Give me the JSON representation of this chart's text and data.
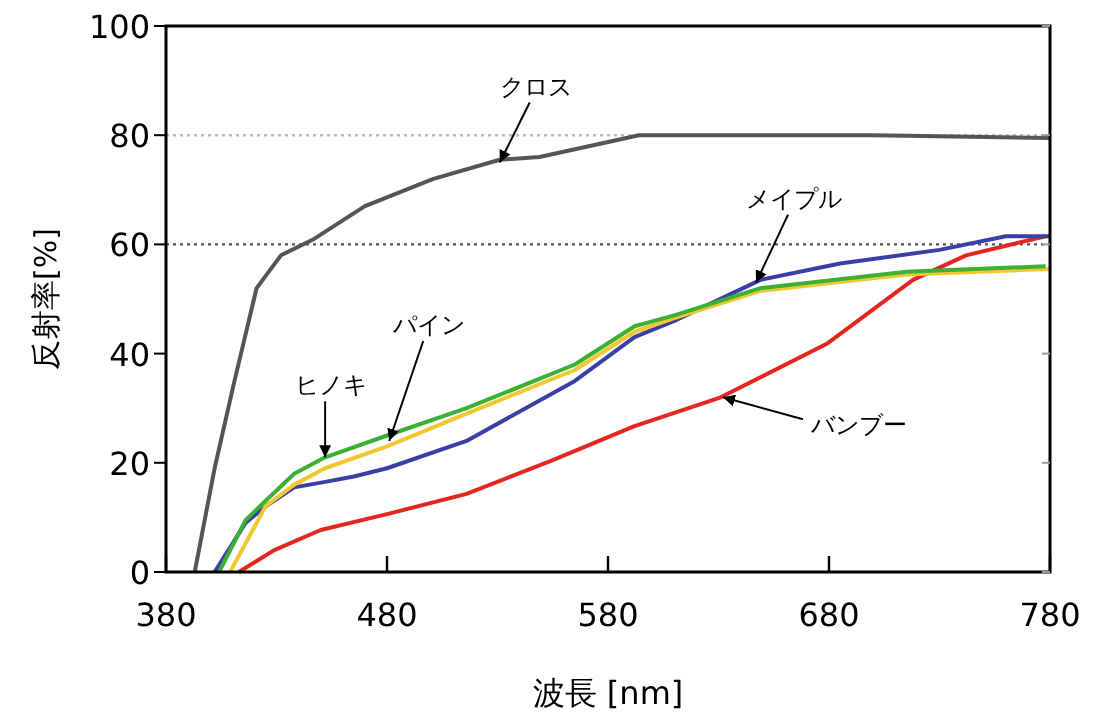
{
  "chart_data": {
    "type": "line",
    "xlabel": "波長 [nm]",
    "ylabel": "反射率[%]",
    "xlim": [
      380,
      780
    ],
    "ylim": [
      0,
      100
    ],
    "xticks": [
      380,
      480,
      580,
      680,
      780
    ],
    "yticks": [
      0,
      20,
      40,
      60,
      80,
      100
    ],
    "ref_lines": [
      {
        "axis": "y",
        "value": 80,
        "color": "#bbbbbb",
        "line_style": "dotted"
      },
      {
        "axis": "y",
        "value": 60,
        "color": "#555555",
        "line_style": "dotted"
      }
    ],
    "series": [
      {
        "color": "#e52620",
        "x": [
          413,
          429,
          450,
          480,
          516,
          555,
          592,
          631,
          679,
          718,
          742,
          778
        ],
        "values": [
          0,
          4,
          7.7,
          10.6,
          14.3,
          20.5,
          26.7,
          32,
          41.8,
          53.5,
          58,
          61.5
        ]
      },
      {
        "color": "#3a3fa6",
        "x": [
          402,
          416,
          425,
          438,
          452,
          465,
          480,
          516,
          565,
          592,
          610,
          649,
          685,
          730,
          760,
          780
        ],
        "values": [
          0,
          9,
          12,
          15.5,
          16.5,
          17.5,
          19,
          24,
          35,
          43,
          46,
          53.5,
          56.5,
          59,
          61.5,
          61.5
        ]
      },
      {
        "color": "#f2c731",
        "x": [
          409,
          425,
          438,
          452,
          480,
          516,
          565,
          592,
          610,
          649,
          715,
          780
        ],
        "values": [
          0,
          12,
          16,
          19,
          23,
          29,
          37,
          44,
          46.5,
          51.5,
          54.5,
          55.5
        ]
      },
      {
        "color": "#3cb034",
        "x": [
          404,
          416,
          425,
          438,
          452,
          480,
          516,
          565,
          592,
          610,
          649,
          715,
          778
        ],
        "values": [
          0,
          9.5,
          13,
          18,
          21,
          25,
          30,
          38,
          45,
          47,
          52,
          55,
          56
        ]
      },
      {
        "color": "#555555",
        "x": [
          393,
          402,
          411,
          421,
          432,
          447,
          470,
          501,
          531,
          549,
          594,
          640,
          700,
          780
        ],
        "values": [
          0,
          19,
          35,
          52,
          58,
          61,
          67,
          72,
          75.5,
          76,
          80,
          80,
          80,
          79.5
        ]
      }
    ],
    "annotations": [
      {
        "text": "クロス",
        "x": 531,
        "y": 75
      },
      {
        "text": "ヒノキ",
        "x": 452,
        "y": 21
      },
      {
        "text": "パイン",
        "x": 481,
        "y": 24
      },
      {
        "text": "メイプル",
        "x": 647,
        "y": 53
      },
      {
        "text": "バンブー",
        "x": 632,
        "y": 32
      }
    ]
  }
}
